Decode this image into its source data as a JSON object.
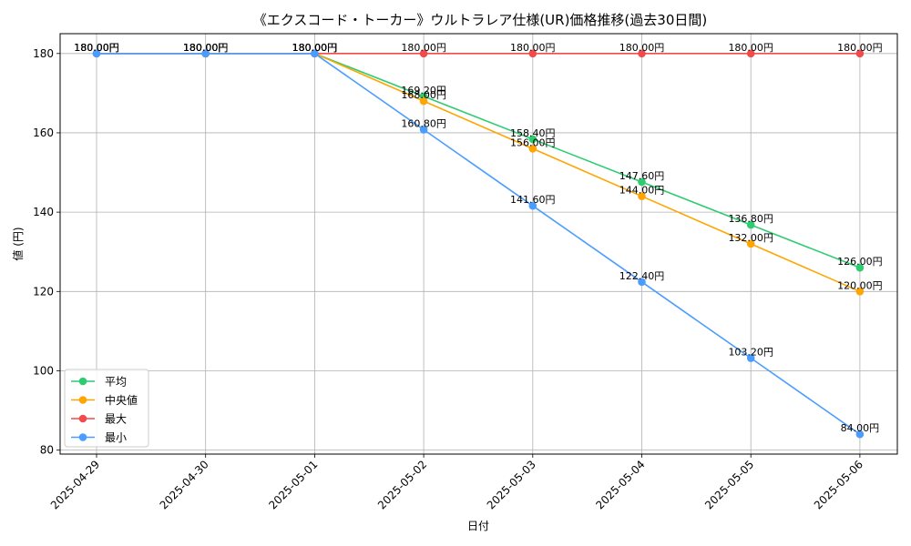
{
  "chart_data": {
    "type": "line",
    "title": "《エクスコード・トーカー》ウルトラレア仕様(UR)価格推移(過去30日間)",
    "xlabel": "日付",
    "ylabel": "値 (円)",
    "categories": [
      "2025-04-29",
      "2025-04-30",
      "2025-05-01",
      "2025-05-02",
      "2025-05-03",
      "2025-05-04",
      "2025-05-05",
      "2025-05-06"
    ],
    "ylim": [
      79,
      185
    ],
    "yticks": [
      80,
      100,
      120,
      140,
      160,
      180
    ],
    "grid": true,
    "legend_position": "lower-left",
    "label_suffix": "円",
    "series": [
      {
        "name": "平均",
        "color": "#2ecc71",
        "values": [
          180.0,
          180.0,
          180.0,
          169.2,
          158.4,
          147.6,
          136.8,
          126.0
        ]
      },
      {
        "name": "中央値",
        "color": "#ffa500",
        "values": [
          180.0,
          180.0,
          180.0,
          168.0,
          156.0,
          144.0,
          132.0,
          120.0
        ]
      },
      {
        "name": "最大",
        "color": "#f24b4b",
        "values": [
          180.0,
          180.0,
          180.0,
          180.0,
          180.0,
          180.0,
          180.0,
          180.0
        ]
      },
      {
        "name": "最小",
        "color": "#4a9dff",
        "values": [
          180.0,
          180.0,
          180.0,
          160.8,
          141.6,
          122.4,
          103.2,
          84.0
        ]
      }
    ]
  }
}
